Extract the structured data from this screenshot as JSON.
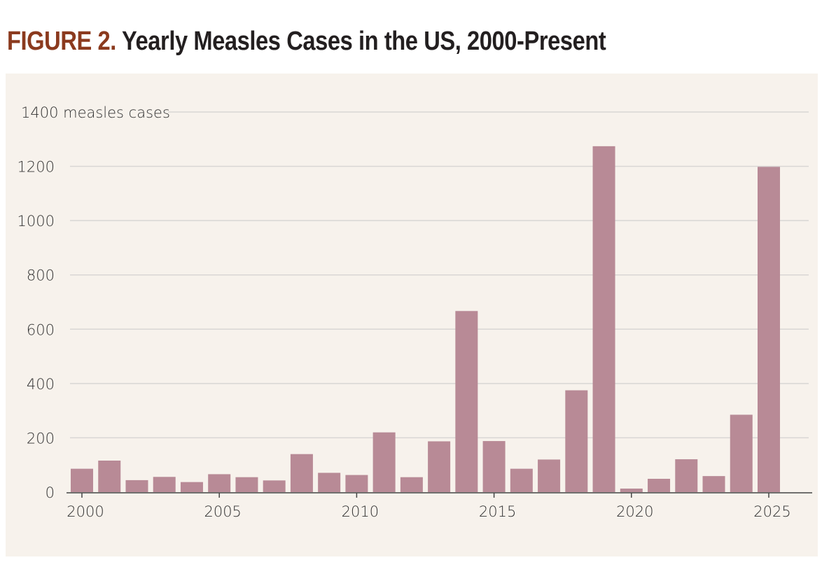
{
  "title_prefix": "FIGURE 2.",
  "title": "Yearly Measles Cases in the US, 2000-Present",
  "chart_data": {
    "type": "bar",
    "title": "FIGURE 2. Yearly Measles Cases in the US, 2000-Present",
    "ylabel": "measles cases",
    "xlabel": "",
    "ylim": [
      0,
      1400
    ],
    "yticks": [
      0,
      200,
      400,
      600,
      800,
      1000,
      1200,
      1400
    ],
    "ytick_labels": [
      "0",
      "200",
      "400",
      "600",
      "800",
      "1000",
      "1200",
      "1400 measles cases"
    ],
    "xticks": [
      "2000",
      "2005",
      "2010",
      "2015",
      "2020",
      "2025"
    ],
    "grid": true,
    "bar_color": "#b88a96",
    "background": "#f7f2ec",
    "categories": [
      2000,
      2001,
      2002,
      2003,
      2004,
      2005,
      2006,
      2007,
      2008,
      2009,
      2010,
      2011,
      2012,
      2013,
      2014,
      2015,
      2016,
      2017,
      2018,
      2019,
      2020,
      2021,
      2022,
      2023,
      2024,
      2025
    ],
    "values": [
      86,
      116,
      44,
      56,
      37,
      66,
      55,
      43,
      140,
      71,
      63,
      220,
      55,
      187,
      667,
      188,
      86,
      120,
      375,
      1274,
      13,
      49,
      121,
      59,
      285,
      1198
    ]
  }
}
